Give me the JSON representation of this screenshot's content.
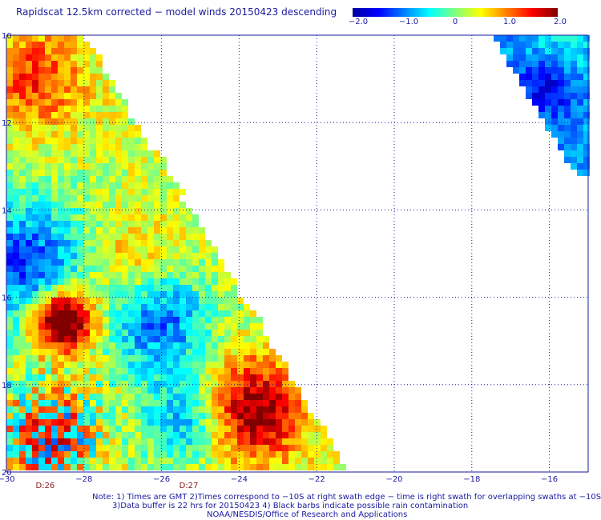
{
  "title": "Rapidscat 12.5km corrected − model winds 20150423 descending",
  "colorbar": {
    "ticks": [
      "−2.0",
      "−1.0",
      "0",
      "1.0",
      "2.0"
    ],
    "min": -2.0,
    "max": 2.0,
    "colors": [
      "#0000a0",
      "#0000ff",
      "#0080ff",
      "#00ffff",
      "#80ff80",
      "#ffff00",
      "#ff8000",
      "#ff0000",
      "#800000"
    ]
  },
  "map": {
    "lon_range": [
      -30,
      -15
    ],
    "lat_range": [
      -20,
      -10
    ],
    "x_ticks": [
      "−30",
      "−28",
      "−26",
      "−24",
      "−22",
      "−20",
      "−18",
      "−16"
    ],
    "y_ticks": [
      "10",
      "12",
      "14",
      "16",
      "18",
      "20"
    ],
    "grid": "dotted",
    "day_labels": [
      {
        "text": "D:26",
        "lon": -29.0
      },
      {
        "text": "D:27",
        "lon": -25.3
      }
    ]
  },
  "notes": {
    "line1": "Note: 1) Times are GMT 2)Times correspond to −10S at right swath edge − time is right swath for overlapping swaths at −10S",
    "line2": "3)Data buffer is 22 hrs for 20150423 4) Black barbs indicate possible rain contamination",
    "line3": "NOAA/NESDIS/Office of Research and Applications"
  }
}
